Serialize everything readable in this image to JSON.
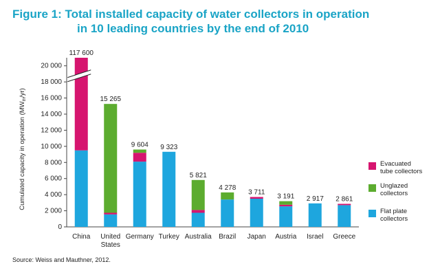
{
  "figure": {
    "title_line1": "Figure 1: Total installed capacity of water collectors in operation",
    "title_line2": "in 10 leading countries by the end of 2010",
    "source": "Source: Weiss and Mauthner, 2012."
  },
  "chart_data": {
    "type": "bar",
    "stacked": true,
    "ylabel": "Cumulated capacity in operation (MW",
    "ylabel_sub": "th",
    "ylabel_suffix": "/yr)",
    "ylim": [
      0,
      21000
    ],
    "yticks": [
      0,
      2000,
      4000,
      6000,
      8000,
      10000,
      12000,
      14000,
      16000,
      18000,
      20000
    ],
    "ytick_labels": [
      "0",
      "2 000",
      "4 000",
      "6 000",
      "8 000",
      "10 000",
      "12 000",
      "14 000",
      "16 000",
      "18 000",
      "20 000"
    ],
    "axis_break": true,
    "grid": false,
    "legend_position": "right",
    "categories": [
      "China",
      "United States",
      "Germany",
      "Turkey",
      "Australia",
      "Brazil",
      "Japan",
      "Austria",
      "Israel",
      "Greece"
    ],
    "category_lines": [
      [
        "China"
      ],
      [
        "United",
        "States"
      ],
      [
        "Germany"
      ],
      [
        "Turkey"
      ],
      [
        "Australia"
      ],
      [
        "Brazil"
      ],
      [
        "Japan"
      ],
      [
        "Austria"
      ],
      [
        "Israel"
      ],
      [
        "Greece"
      ]
    ],
    "totals": [
      117600,
      15265,
      9604,
      9323,
      5821,
      4278,
      3711,
      3191,
      2917,
      2861
    ],
    "total_labels": [
      "117 600",
      "15 265",
      "9 604",
      "9 323",
      "5 821",
      "4 278",
      "3 711",
      "3 191",
      "2 917",
      "2 861"
    ],
    "series": [
      {
        "name": "Flat plate collectors",
        "name_lines": [
          "Flat plate",
          "collectors"
        ],
        "color": "#1ea6de",
        "values": [
          9500,
          1550,
          8100,
          9323,
          1750,
          3400,
          3500,
          2550,
          2917,
          2700
        ]
      },
      {
        "name": "Evacuated tube collectors",
        "name_lines": [
          "Evacuated",
          "tube collectors"
        ],
        "color": "#d6156f",
        "values": [
          108100,
          200,
          1100,
          0,
          350,
          0,
          211,
          200,
          0,
          161
        ]
      },
      {
        "name": "Unglazed collectors",
        "name_lines": [
          "Unglazed",
          "collectors"
        ],
        "color": "#5cac2f",
        "values": [
          0,
          13515,
          404,
          0,
          3721,
          878,
          0,
          441,
          0,
          0
        ]
      }
    ],
    "legend_order": [
      1,
      2,
      0
    ]
  }
}
